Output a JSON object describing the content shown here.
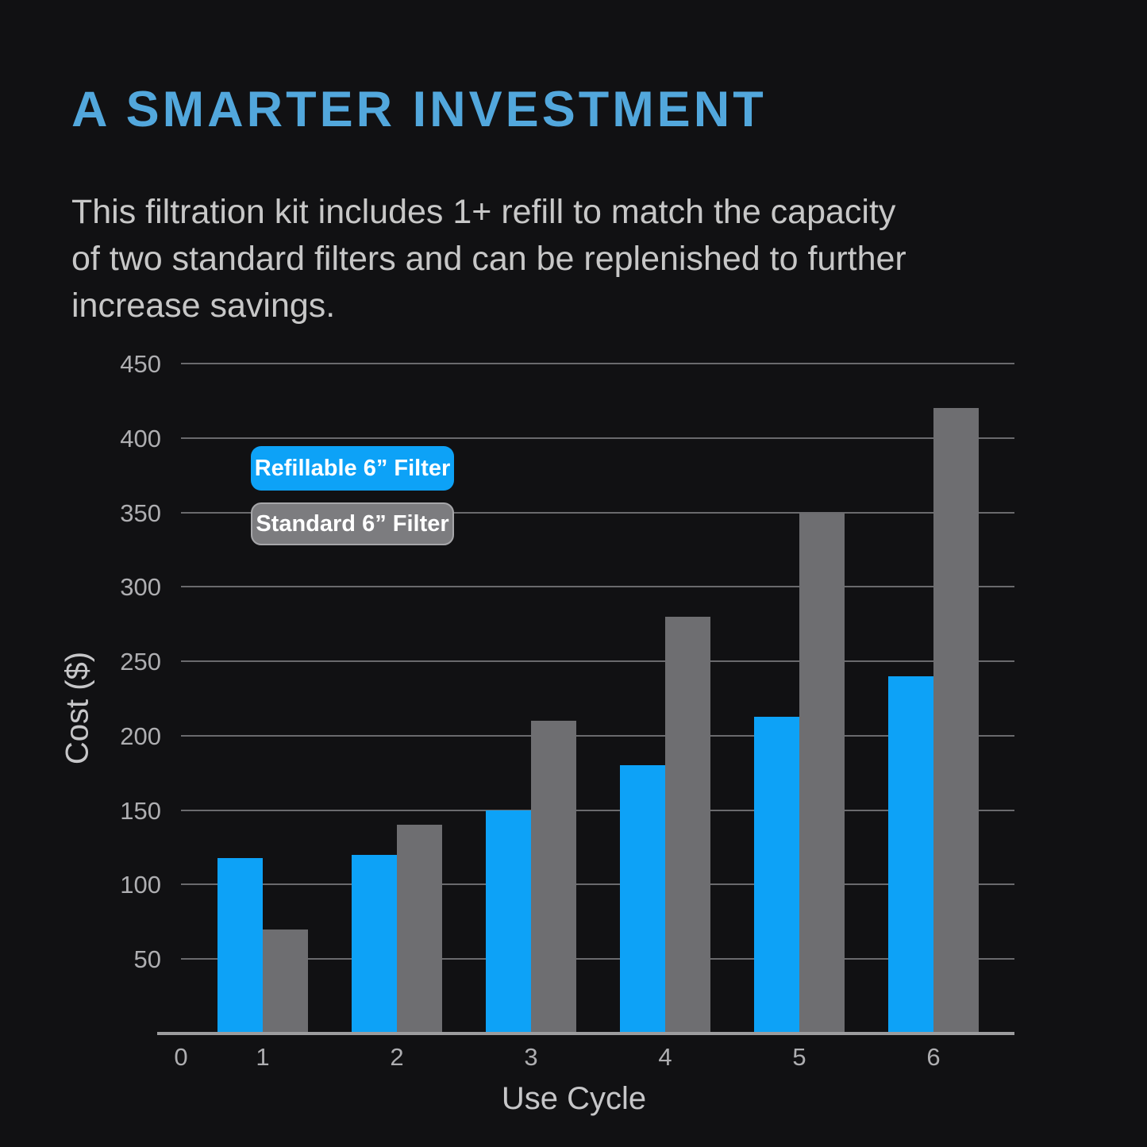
{
  "header": {
    "title": "A SMARTER INVESTMENT",
    "description": "This filtration kit includes 1+ refill to match the capacity\nof two standard filters and can be replenished to further\nincrease savings."
  },
  "chart_data": {
    "type": "bar",
    "categories": [
      1,
      2,
      3,
      4,
      5,
      6
    ],
    "series": [
      {
        "name": "Refillable 6” Filter",
        "values": [
          118,
          120,
          150,
          180,
          213,
          240
        ],
        "color": "#0da2f7"
      },
      {
        "name": "Standard 6” Filter",
        "values": [
          70,
          140,
          210,
          280,
          350,
          420
        ],
        "color": "#6e6e71"
      }
    ],
    "xlabel": "Use Cycle",
    "ylabel": "Cost ($)",
    "xticks": [
      0,
      1,
      2,
      3,
      4,
      5,
      6
    ],
    "ylim": [
      0,
      450
    ],
    "ytick_step": 50,
    "grid": true,
    "legend_position": "upper-left-inside"
  },
  "colors": {
    "background": "#111113",
    "title_text": "#52a7dc",
    "body_text": "#c7c7c7",
    "axis_text": "#aeaeb1",
    "axis_title_text": "#c6c6c8",
    "gridline": "#7a7a7e",
    "axis_line": "#9c9c9e",
    "refillable_bar": "#0da2f7",
    "standard_bar": "#6e6e71",
    "legend_refillable_bg": "#0da2f7",
    "legend_standard_bg": "#7c7c7f",
    "legend_standard_border": "#a6a6a9",
    "legend_text": "#ffffff"
  }
}
